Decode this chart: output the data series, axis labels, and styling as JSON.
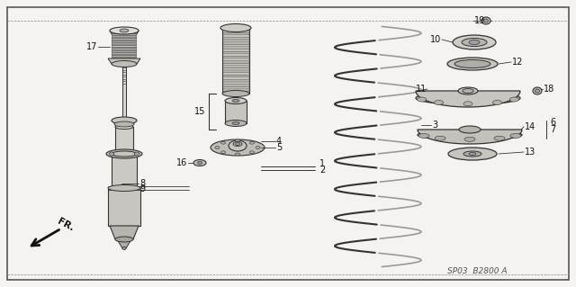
{
  "bg_color": "#f5f3ef",
  "border_color": "#444444",
  "text_color": "#111111",
  "line_color": "#333333",
  "fig_width": 6.4,
  "fig_height": 3.19,
  "watermark": "SP03  B2800 A",
  "direction_label": "FR."
}
